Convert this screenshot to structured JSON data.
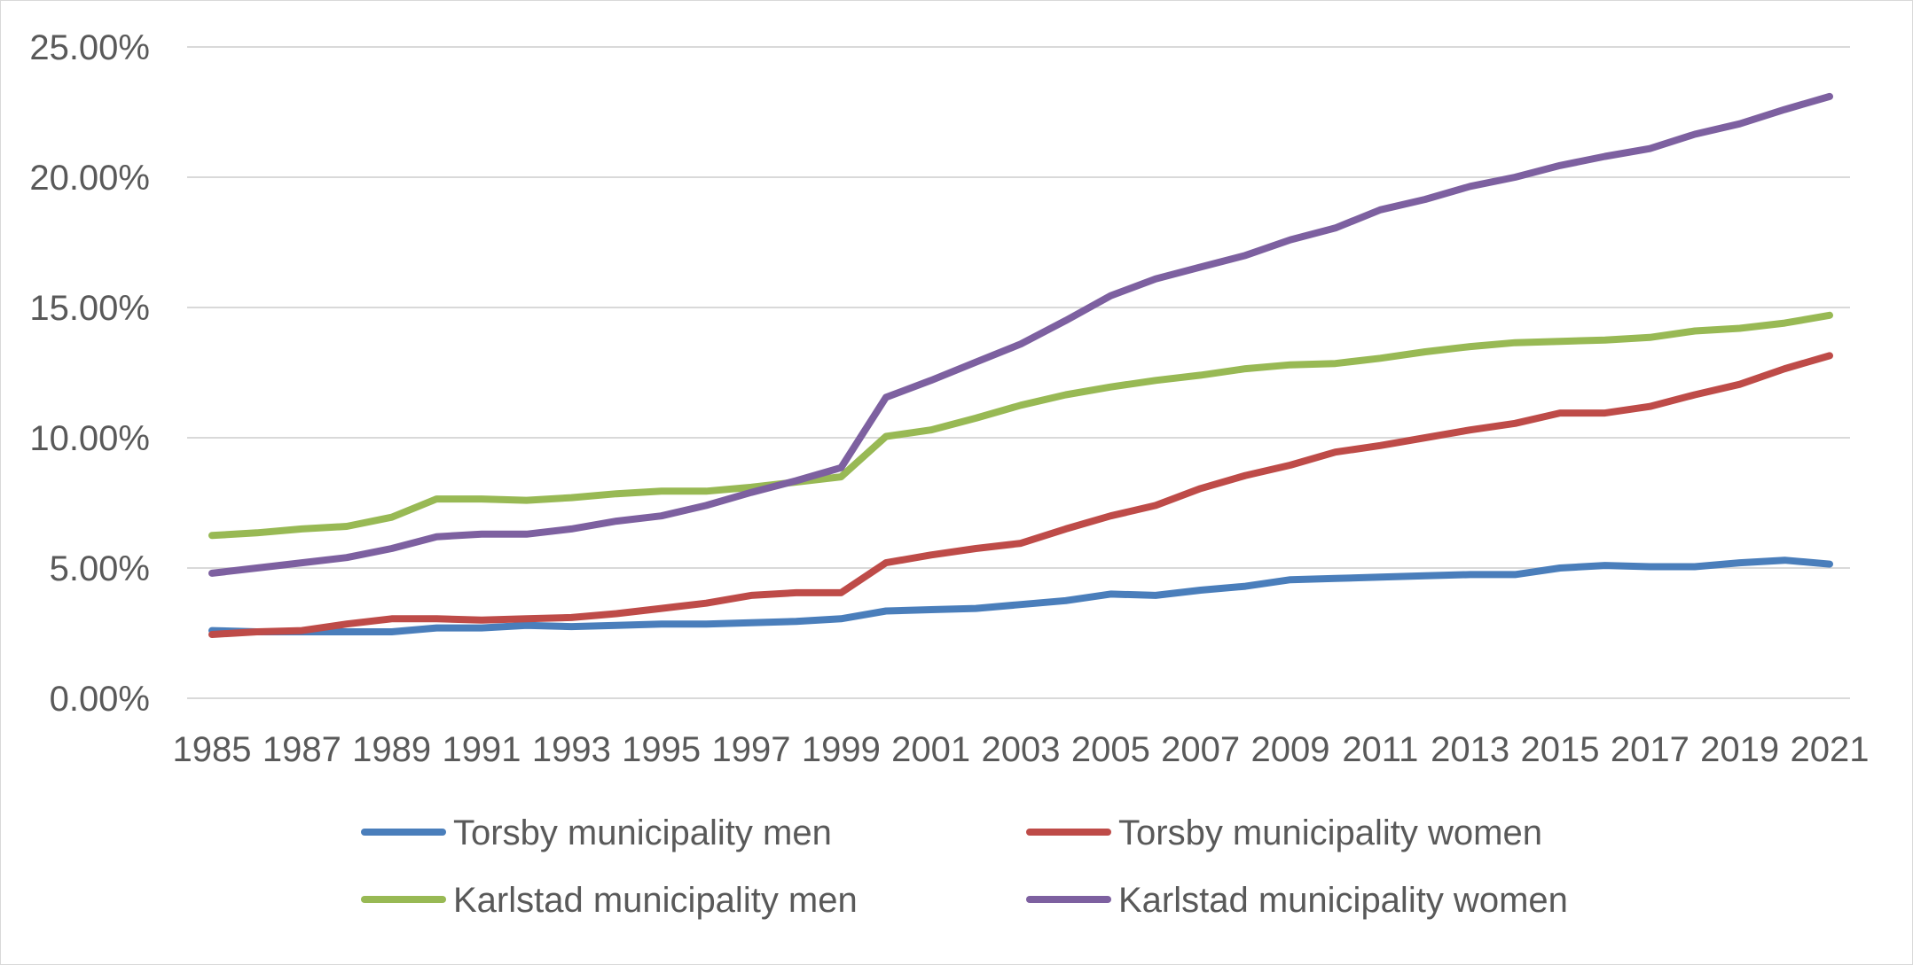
{
  "chart_data": {
    "type": "line",
    "title": "",
    "xlabel": "",
    "ylabel": "",
    "x": [
      1985,
      1986,
      1987,
      1988,
      1989,
      1990,
      1991,
      1992,
      1993,
      1994,
      1995,
      1996,
      1997,
      1998,
      1999,
      2000,
      2001,
      2002,
      2003,
      2004,
      2005,
      2006,
      2007,
      2008,
      2009,
      2010,
      2011,
      2012,
      2013,
      2014,
      2015,
      2016,
      2017,
      2018,
      2019,
      2020,
      2021
    ],
    "x_tick_labels": [
      "1985",
      "1987",
      "1989",
      "1991",
      "1993",
      "1995",
      "1997",
      "1999",
      "2001",
      "2003",
      "2005",
      "2007",
      "2009",
      "2011",
      "2013",
      "2015",
      "2017",
      "2019",
      "2021"
    ],
    "ylim": [
      0,
      25
    ],
    "y_ticks": [
      0,
      5,
      10,
      15,
      20,
      25
    ],
    "y_tick_labels": [
      "0.00%",
      "5.00%",
      "10.00%",
      "15.00%",
      "20.00%",
      "25.00%"
    ],
    "grid": true,
    "legend_position": "bottom",
    "series": [
      {
        "name": "Torsby municipality men",
        "color": "#4a7ebb",
        "values": [
          2.6,
          2.55,
          2.55,
          2.55,
          2.55,
          2.7,
          2.7,
          2.8,
          2.75,
          2.8,
          2.85,
          2.85,
          2.9,
          2.95,
          3.05,
          3.35,
          3.4,
          3.45,
          3.6,
          3.75,
          4.0,
          3.95,
          4.15,
          4.3,
          4.55,
          4.6,
          4.65,
          4.7,
          4.75,
          4.75,
          5.0,
          5.1,
          5.05,
          5.05,
          5.2,
          5.3,
          5.15
        ]
      },
      {
        "name": "Torsby municipality women",
        "color": "#be4b48",
        "values": [
          2.45,
          2.55,
          2.6,
          2.85,
          3.05,
          3.05,
          3.0,
          3.05,
          3.1,
          3.25,
          3.45,
          3.65,
          3.95,
          4.05,
          4.05,
          5.2,
          5.5,
          5.75,
          5.95,
          6.5,
          7.0,
          7.4,
          8.05,
          8.55,
          8.95,
          9.45,
          9.7,
          10.0,
          10.3,
          10.55,
          10.95,
          10.95,
          11.2,
          11.65,
          12.05,
          12.65,
          13.15
        ]
      },
      {
        "name": "Karlstad municipality men",
        "color": "#98b954",
        "values": [
          6.25,
          6.35,
          6.5,
          6.6,
          6.95,
          7.65,
          7.65,
          7.6,
          7.7,
          7.85,
          7.95,
          7.95,
          8.1,
          8.3,
          8.5,
          10.05,
          10.3,
          10.75,
          11.25,
          11.65,
          11.95,
          12.2,
          12.4,
          12.65,
          12.8,
          12.85,
          13.05,
          13.3,
          13.5,
          13.65,
          13.7,
          13.75,
          13.85,
          14.1,
          14.2,
          14.4,
          14.7
        ]
      },
      {
        "name": "Karlstad municipality women",
        "color": "#7d60a0",
        "values": [
          4.8,
          5.0,
          5.2,
          5.4,
          5.75,
          6.2,
          6.3,
          6.3,
          6.5,
          6.8,
          7.0,
          7.4,
          7.9,
          8.35,
          8.85,
          11.55,
          12.2,
          12.9,
          13.6,
          14.5,
          15.45,
          16.1,
          16.55,
          17.0,
          17.6,
          18.05,
          18.75,
          19.15,
          19.65,
          20.0,
          20.45,
          20.8,
          21.1,
          21.65,
          22.05,
          22.6,
          23.1
        ]
      }
    ]
  }
}
